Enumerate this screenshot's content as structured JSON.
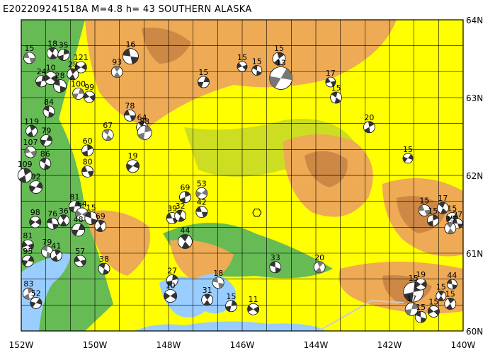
{
  "title": "E202209241518A  M=4.8  h=  43 SOUTHERN ALASKA",
  "map": {
    "lon_min": -152,
    "lon_max": -140,
    "lat_min": 60,
    "lat_max": 64,
    "lon_ticks": [
      {
        "lon": -152,
        "label": "152W"
      },
      {
        "lon": -150,
        "label": "150W"
      },
      {
        "lon": -148,
        "label": "148W"
      },
      {
        "lon": -146,
        "label": "146W"
      },
      {
        "lon": -144,
        "label": "144W"
      },
      {
        "lon": -142,
        "label": "142W"
      },
      {
        "lon": -140,
        "label": "140W"
      }
    ],
    "lat_ticks": [
      {
        "lat": 64,
        "label": "64N"
      },
      {
        "lat": 63,
        "label": "63N"
      },
      {
        "lat": 62,
        "label": "62N"
      },
      {
        "lat": 61,
        "label": "61N"
      },
      {
        "lat": 60,
        "label": "60N"
      }
    ],
    "grid_lon_step": 0.6667,
    "grid_lat_step": 0.3333,
    "colors": {
      "water": "#99ccff",
      "lowland": "#66bb55",
      "midland": "#ccdd22",
      "highland": "#ffff00",
      "mountain": "#eeaa55",
      "peak": "#cc8844",
      "grid": "#000000",
      "border": "#cccccc"
    },
    "epicenter": {
      "lon": -145.6,
      "lat": 61.52
    }
  },
  "events": [
    {
      "lon": -151.78,
      "lat": 63.51,
      "depth": "15",
      "size": 8
    },
    {
      "lon": -151.15,
      "lat": 63.57,
      "depth": "18",
      "size": 8
    },
    {
      "lon": -150.85,
      "lat": 63.55,
      "depth": "35",
      "size": 8
    },
    {
      "lon": -150.38,
      "lat": 63.39,
      "depth": "121",
      "size": 8
    },
    {
      "lon": -149.03,
      "lat": 63.53,
      "depth": "16",
      "size": 11
    },
    {
      "lon": -149.4,
      "lat": 63.33,
      "depth": "93",
      "size": 8
    },
    {
      "lon": -151.45,
      "lat": 63.21,
      "depth": "24",
      "size": 8
    },
    {
      "lon": -151.2,
      "lat": 63.25,
      "depth": "10",
      "size": 9
    },
    {
      "lon": -150.95,
      "lat": 63.15,
      "depth": "28",
      "size": 9
    },
    {
      "lon": -150.6,
      "lat": 63.3,
      "depth": "28",
      "size": 8
    },
    {
      "lon": -150.45,
      "lat": 63.05,
      "depth": "100",
      "size": 8
    },
    {
      "lon": -150.15,
      "lat": 63.01,
      "depth": "99",
      "size": 8
    },
    {
      "lon": -151.25,
      "lat": 62.82,
      "depth": "84",
      "size": 8
    },
    {
      "lon": -151.72,
      "lat": 62.57,
      "depth": "119",
      "size": 8
    },
    {
      "lon": -151.32,
      "lat": 62.45,
      "depth": "79",
      "size": 8
    },
    {
      "lon": -151.75,
      "lat": 62.3,
      "depth": "107",
      "size": 8
    },
    {
      "lon": -151.35,
      "lat": 62.15,
      "depth": "86",
      "size": 8
    },
    {
      "lon": -151.9,
      "lat": 62.0,
      "depth": "109",
      "size": 10
    },
    {
      "lon": -151.6,
      "lat": 61.85,
      "depth": "92",
      "size": 9
    },
    {
      "lon": -150.2,
      "lat": 62.05,
      "depth": "80",
      "size": 8
    },
    {
      "lon": -149.65,
      "lat": 62.52,
      "depth": "67",
      "size": 8
    },
    {
      "lon": -150.2,
      "lat": 62.32,
      "depth": "60",
      "size": 8
    },
    {
      "lon": -148.97,
      "lat": 62.12,
      "depth": "19",
      "size": 9
    },
    {
      "lon": -149.05,
      "lat": 62.77,
      "depth": "78",
      "size": 8
    },
    {
      "lon": -148.72,
      "lat": 62.62,
      "depth": "64",
      "size": 8
    },
    {
      "lon": -148.65,
      "lat": 62.55,
      "depth": "88",
      "size": 10
    },
    {
      "lon": -151.62,
      "lat": 61.4,
      "depth": "98",
      "size": 8
    },
    {
      "lon": -151.15,
      "lat": 61.38,
      "depth": "76",
      "size": 8
    },
    {
      "lon": -150.85,
      "lat": 61.42,
      "depth": "36",
      "size": 8
    },
    {
      "lon": -150.55,
      "lat": 61.6,
      "depth": "81",
      "size": 8
    },
    {
      "lon": -150.35,
      "lat": 61.5,
      "depth": "64",
      "size": 9
    },
    {
      "lon": -150.1,
      "lat": 61.45,
      "depth": "15",
      "size": 9
    },
    {
      "lon": -149.85,
      "lat": 61.35,
      "depth": "69",
      "size": 8
    },
    {
      "lon": -150.45,
      "lat": 61.3,
      "depth": "48",
      "size": 9
    },
    {
      "lon": -151.82,
      "lat": 61.1,
      "depth": "81",
      "size": 8
    },
    {
      "lon": -151.3,
      "lat": 61.02,
      "depth": "79",
      "size": 8
    },
    {
      "lon": -151.05,
      "lat": 60.97,
      "depth": "41",
      "size": 8
    },
    {
      "lon": -151.82,
      "lat": 60.9,
      "depth": "95",
      "size": 8
    },
    {
      "lon": -150.4,
      "lat": 60.9,
      "depth": "57",
      "size": 8
    },
    {
      "lon": -149.75,
      "lat": 60.8,
      "depth": "38",
      "size": 8
    },
    {
      "lon": -151.8,
      "lat": 60.48,
      "depth": "83",
      "size": 8
    },
    {
      "lon": -151.6,
      "lat": 60.36,
      "depth": "52",
      "size": 8
    },
    {
      "lon": -147.9,
      "lat": 61.45,
      "depth": "39",
      "size": 8
    },
    {
      "lon": -147.68,
      "lat": 61.48,
      "depth": "32",
      "size": 8
    },
    {
      "lon": -147.55,
      "lat": 61.72,
      "depth": "69",
      "size": 8
    },
    {
      "lon": -147.1,
      "lat": 61.77,
      "depth": "53",
      "size": 8
    },
    {
      "lon": -147.1,
      "lat": 61.53,
      "depth": "42",
      "size": 8
    },
    {
      "lon": -147.55,
      "lat": 61.15,
      "depth": "44",
      "size": 10
    },
    {
      "lon": -147.9,
      "lat": 60.65,
      "depth": "27",
      "size": 8
    },
    {
      "lon": -147.95,
      "lat": 60.45,
      "depth": "10",
      "size": 9
    },
    {
      "lon": -146.65,
      "lat": 60.62,
      "depth": "18",
      "size": 8
    },
    {
      "lon": -146.95,
      "lat": 60.4,
      "depth": "31",
      "size": 8
    },
    {
      "lon": -146.3,
      "lat": 60.32,
      "depth": "15",
      "size": 8
    },
    {
      "lon": -145.7,
      "lat": 60.28,
      "depth": "11",
      "size": 8
    },
    {
      "lon": -145.1,
      "lat": 60.82,
      "depth": "33",
      "size": 8
    },
    {
      "lon": -143.9,
      "lat": 60.82,
      "depth": "20",
      "size": 8
    },
    {
      "lon": -147.05,
      "lat": 63.2,
      "depth": "15",
      "size": 8
    },
    {
      "lon": -146.0,
      "lat": 63.4,
      "depth": "15",
      "size": 7
    },
    {
      "lon": -145.6,
      "lat": 63.35,
      "depth": "15",
      "size": 7
    },
    {
      "lon": -145.0,
      "lat": 63.5,
      "depth": "15",
      "size": 9
    },
    {
      "lon": -144.95,
      "lat": 63.25,
      "depth": "13",
      "size": 16
    },
    {
      "lon": -143.6,
      "lat": 63.2,
      "depth": "17",
      "size": 7
    },
    {
      "lon": -143.45,
      "lat": 63.0,
      "depth": "15",
      "size": 8
    },
    {
      "lon": -142.55,
      "lat": 62.62,
      "depth": "20",
      "size": 8
    },
    {
      "lon": -141.5,
      "lat": 62.22,
      "depth": "15",
      "size": 7
    },
    {
      "lon": -141.05,
      "lat": 61.55,
      "depth": "15",
      "size": 8
    },
    {
      "lon": -140.55,
      "lat": 61.58,
      "depth": "17",
      "size": 8
    },
    {
      "lon": -140.82,
      "lat": 61.42,
      "depth": "15",
      "size": 8
    },
    {
      "lon": -140.3,
      "lat": 61.45,
      "depth": "15",
      "size": 8
    },
    {
      "lon": -140.15,
      "lat": 61.38,
      "depth": "27",
      "size": 7
    },
    {
      "lon": -140.35,
      "lat": 61.32,
      "depth": "35",
      "size": 8
    },
    {
      "lon": -141.35,
      "lat": 60.5,
      "depth": "15",
      "size": 14
    },
    {
      "lon": -141.15,
      "lat": 60.6,
      "depth": "19",
      "size": 8
    },
    {
      "lon": -140.3,
      "lat": 60.6,
      "depth": "44",
      "size": 7
    },
    {
      "lon": -140.6,
      "lat": 60.45,
      "depth": "15",
      "size": 7
    },
    {
      "lon": -141.4,
      "lat": 60.28,
      "depth": "17",
      "size": 9
    },
    {
      "lon": -140.8,
      "lat": 60.25,
      "depth": "15",
      "size": 8
    },
    {
      "lon": -141.15,
      "lat": 60.18,
      "depth": "15",
      "size": 8
    },
    {
      "lon": -140.35,
      "lat": 60.35,
      "depth": "15",
      "size": 8
    }
  ]
}
